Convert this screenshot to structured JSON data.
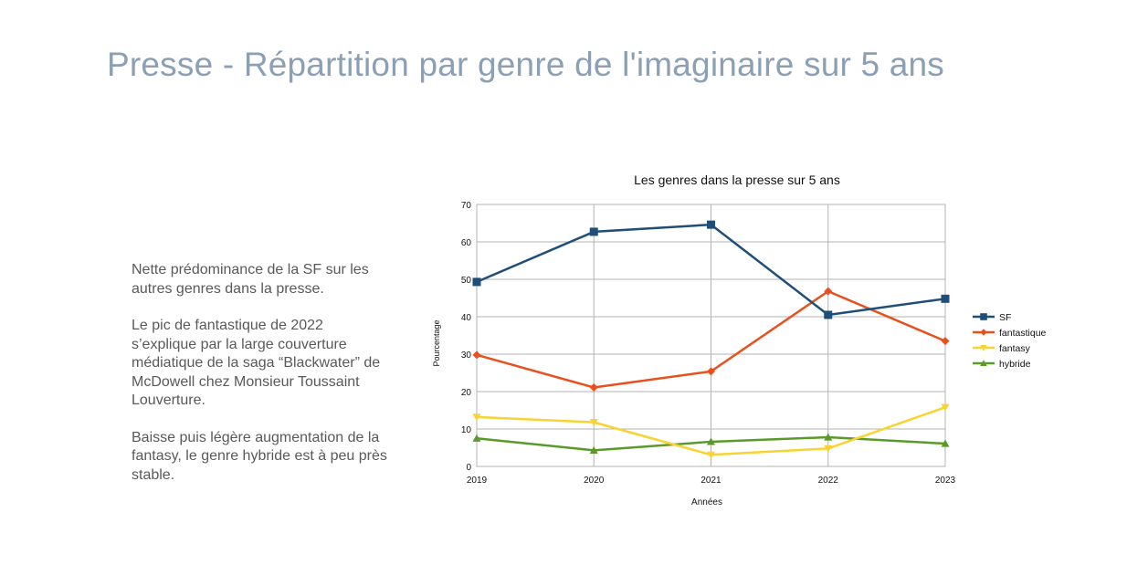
{
  "slide": {
    "title": "Presse - Répartition par genre de l'imaginaire sur 5 ans"
  },
  "notes": [
    "Nette prédominance de la SF sur les autres genres dans la presse.",
    "Le pic de fantastique de 2022 s’explique par la large couverture médiatique de la saga “Blackwater” de McDowell chez Monsieur Toussaint Louverture.",
    "Baisse puis légère augmentation de la fantasy, le genre hybride est à peu près stable."
  ],
  "chart_data": {
    "type": "line",
    "title": "Les genres dans la presse sur 5 ans",
    "xlabel": "Années",
    "ylabel": "Pourcentage",
    "categories": [
      "2019",
      "2020",
      "2021",
      "2022",
      "2023"
    ],
    "ylim": [
      0,
      70
    ],
    "yticks": [
      0,
      10,
      20,
      30,
      40,
      50,
      60,
      70
    ],
    "grid": true,
    "legend_position": "right",
    "series": [
      {
        "name": "SF",
        "color": "#1f4e79",
        "marker": "square",
        "values": [
          49.3,
          62.7,
          64.6,
          40.5,
          44.8
        ]
      },
      {
        "name": "fantastique",
        "color": "#e8501c",
        "marker": "diamond",
        "values": [
          29.8,
          21.1,
          25.4,
          46.8,
          33.5
        ]
      },
      {
        "name": "fantasy",
        "color": "#f7d431",
        "marker": "triangle-down",
        "values": [
          13.2,
          11.8,
          3.1,
          4.8,
          15.8
        ]
      },
      {
        "name": "hybride",
        "color": "#5b9a2a",
        "marker": "triangle-up",
        "values": [
          7.5,
          4.3,
          6.6,
          7.8,
          6.1
        ]
      }
    ]
  }
}
